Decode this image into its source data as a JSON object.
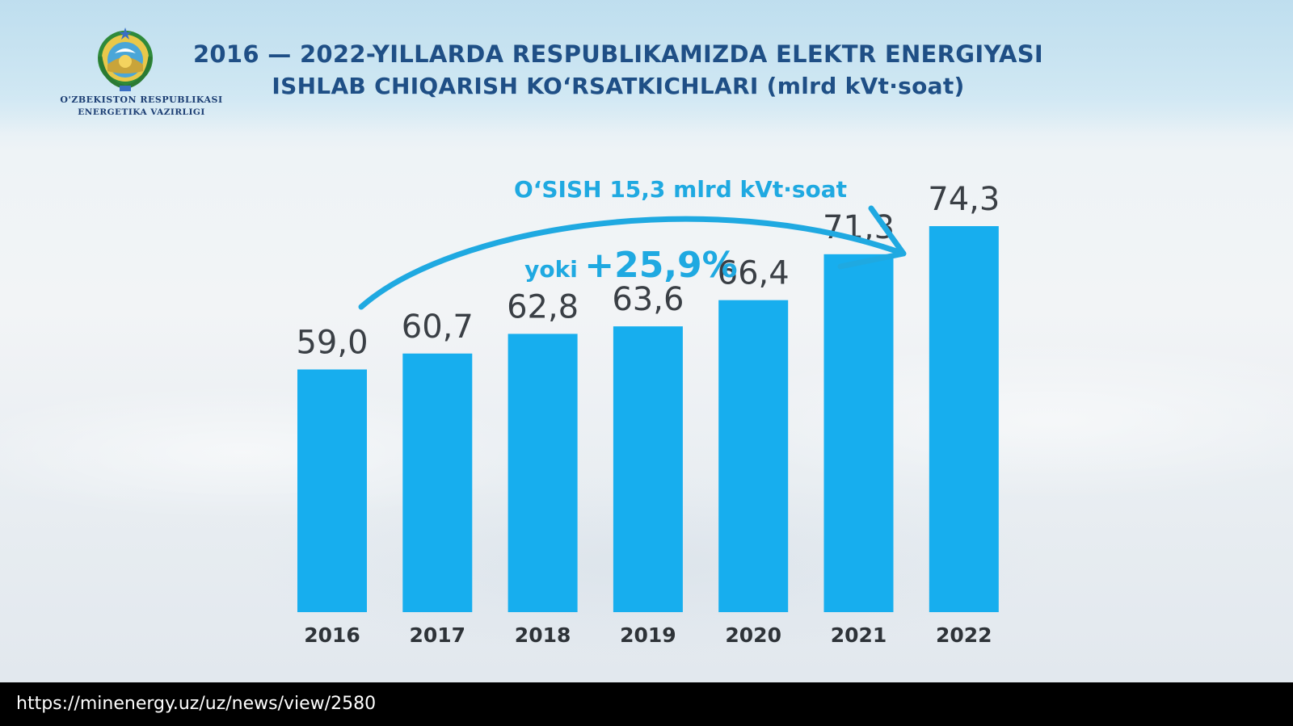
{
  "organization": {
    "line1": "O'ZBEKISTON RESPUBLIKASI",
    "line2": "ENERGETIKA VAZIRLIGI"
  },
  "title": {
    "line1": "2016 — 2022-YILLARDA RESPUBLIKAMIZDA ELEKTR ENERGIYASI",
    "line2": "ISHLAB CHIQARISH KOʻRSATKICHLARI (mlrd kVt·soat)"
  },
  "colors": {
    "bar": "#17aeee",
    "arrow": "#1fa9e1",
    "title": "#1f4f86",
    "value_label": "#3a3f45",
    "axis_label": "#2e3338"
  },
  "chart_data": {
    "type": "bar",
    "categories": [
      "2016",
      "2017",
      "2018",
      "2019",
      "2020",
      "2021",
      "2022"
    ],
    "values": [
      59.0,
      60.7,
      62.8,
      63.6,
      66.4,
      71.3,
      74.3
    ],
    "value_labels": [
      "59,0",
      "60,7",
      "62,8",
      "63,6",
      "66,4",
      "71,3",
      "74,3"
    ],
    "xlabel": "",
    "ylabel": "",
    "grid": false,
    "legend": "none",
    "annotations": {
      "growth_text": "O‘SISH 15,3 mlrd kVt·soat",
      "or_text": "yoki",
      "percent_text": "+25,9%"
    }
  },
  "footer": {
    "source_url": "https://minenergy.uz/uz/news/view/2580"
  }
}
